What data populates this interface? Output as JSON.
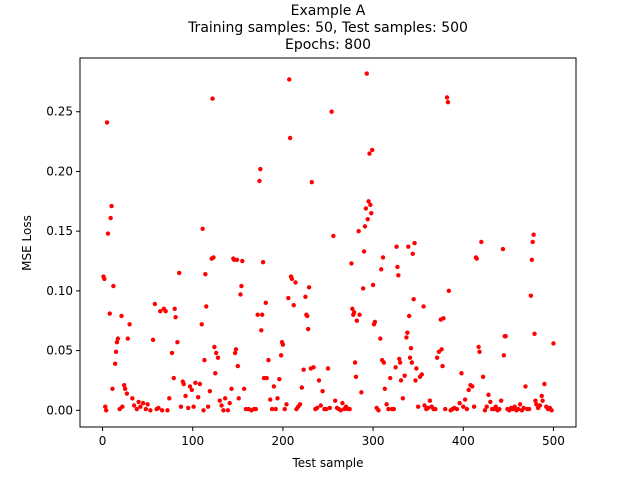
{
  "chart_data": {
    "type": "scatter",
    "title_lines": [
      "Example A",
      "Training samples: 50,   Test samples: 500",
      "Epochs: 800"
    ],
    "xlabel": "Test sample",
    "ylabel": "MSE Loss",
    "xlim": [
      -25,
      525
    ],
    "ylim": [
      -0.014,
      0.295
    ],
    "xticks": [
      0,
      100,
      200,
      300,
      400,
      500
    ],
    "xtick_labels": [
      "0",
      "100",
      "200",
      "300",
      "400",
      "500"
    ],
    "yticks": [
      0.0,
      0.05,
      0.1,
      0.15,
      0.2,
      0.25
    ],
    "ytick_labels": [
      "0.00",
      "0.05",
      "0.10",
      "0.15",
      "0.20",
      "0.25"
    ],
    "grid": false,
    "legend": "none",
    "marker_color": "#ff0000",
    "points": [
      [
        1,
        0.112
      ],
      [
        2,
        0.11
      ],
      [
        3,
        0.003
      ],
      [
        4,
        0.0
      ],
      [
        5,
        0.241
      ],
      [
        6,
        0.148
      ],
      [
        8,
        0.081
      ],
      [
        9,
        0.161
      ],
      [
        10,
        0.171
      ],
      [
        11,
        0.018
      ],
      [
        12,
        0.104
      ],
      [
        14,
        0.039
      ],
      [
        15,
        0.049
      ],
      [
        16,
        0.057
      ],
      [
        17,
        0.06
      ],
      [
        19,
        0.001
      ],
      [
        21,
        0.079
      ],
      [
        22,
        0.003
      ],
      [
        24,
        0.021
      ],
      [
        25,
        0.018
      ],
      [
        27,
        0.014
      ],
      [
        28,
        0.06
      ],
      [
        30,
        0.072
      ],
      [
        33,
        0.01
      ],
      [
        35,
        0.004
      ],
      [
        38,
        0.001
      ],
      [
        40,
        0.007
      ],
      [
        42,
        0.003
      ],
      [
        45,
        0.006
      ],
      [
        48,
        0.001
      ],
      [
        50,
        0.005
      ],
      [
        53,
        0.0
      ],
      [
        56,
        0.059
      ],
      [
        58,
        0.089
      ],
      [
        60,
        0.001
      ],
      [
        62,
        0.002
      ],
      [
        64,
        0.083
      ],
      [
        66,
        0.0
      ],
      [
        68,
        0.085
      ],
      [
        70,
        0.083
      ],
      [
        72,
        0.0
      ],
      [
        74,
        0.01
      ],
      [
        77,
        0.048
      ],
      [
        79,
        0.027
      ],
      [
        80,
        0.085
      ],
      [
        81,
        0.078
      ],
      [
        83,
        0.057
      ],
      [
        85,
        0.115
      ],
      [
        87,
        0.003
      ],
      [
        89,
        0.024
      ],
      [
        90,
        0.022
      ],
      [
        92,
        0.012
      ],
      [
        95,
        0.002
      ],
      [
        97,
        0.02
      ],
      [
        99,
        0.017
      ],
      [
        101,
        0.003
      ],
      [
        103,
        0.023
      ],
      [
        106,
        0.011
      ],
      [
        108,
        0.022
      ],
      [
        110,
        0.072
      ],
      [
        111,
        0.152
      ],
      [
        112,
        0.0
      ],
      [
        113,
        0.042
      ],
      [
        114,
        0.114
      ],
      [
        115,
        0.087
      ],
      [
        117,
        0.003
      ],
      [
        119,
        0.016
      ],
      [
        121,
        0.127
      ],
      [
        122,
        0.261
      ],
      [
        123,
        0.128
      ],
      [
        124,
        0.053
      ],
      [
        125,
        0.031
      ],
      [
        126,
        0.048
      ],
      [
        128,
        0.044
      ],
      [
        130,
        0.008
      ],
      [
        132,
        0.004
      ],
      [
        134,
        0.0
      ],
      [
        136,
        0.01
      ],
      [
        139,
        0.0
      ],
      [
        141,
        0.006
      ],
      [
        143,
        0.018
      ],
      [
        145,
        0.127
      ],
      [
        146,
        0.126
      ],
      [
        147,
        0.048
      ],
      [
        148,
        0.051
      ],
      [
        149,
        0.126
      ],
      [
        150,
        0.037
      ],
      [
        151,
        0.01
      ],
      [
        153,
        0.097
      ],
      [
        154,
        0.104
      ],
      [
        155,
        0.125
      ],
      [
        157,
        0.018
      ],
      [
        159,
        0.001
      ],
      [
        162,
        0.001
      ],
      [
        165,
        0.0
      ],
      [
        168,
        0.001
      ],
      [
        170,
        0.001
      ],
      [
        172,
        0.08
      ],
      [
        174,
        0.192
      ],
      [
        175,
        0.202
      ],
      [
        176,
        0.067
      ],
      [
        177,
        0.08
      ],
      [
        178,
        0.124
      ],
      [
        179,
        0.027
      ],
      [
        181,
        0.09
      ],
      [
        182,
        0.027
      ],
      [
        184,
        0.042
      ],
      [
        186,
        0.009
      ],
      [
        188,
        0.001
      ],
      [
        190,
        0.02
      ],
      [
        192,
        0.001
      ],
      [
        194,
        0.01
      ],
      [
        196,
        0.026
      ],
      [
        198,
        0.046
      ],
      [
        199,
        0.057
      ],
      [
        200,
        0.055
      ],
      [
        202,
        0.001
      ],
      [
        204,
        0.005
      ],
      [
        206,
        0.094
      ],
      [
        207,
        0.277
      ],
      [
        208,
        0.228
      ],
      [
        209,
        0.112
      ],
      [
        210,
        0.11
      ],
      [
        212,
        0.088
      ],
      [
        214,
        0.107
      ],
      [
        215,
        0.001
      ],
      [
        217,
        0.003
      ],
      [
        219,
        0.005
      ],
      [
        221,
        0.019
      ],
      [
        223,
        0.034
      ],
      [
        225,
        0.095
      ],
      [
        226,
        0.08
      ],
      [
        227,
        0.079
      ],
      [
        228,
        0.068
      ],
      [
        229,
        0.103
      ],
      [
        231,
        0.035
      ],
      [
        232,
        0.191
      ],
      [
        234,
        0.036
      ],
      [
        236,
        0.001
      ],
      [
        238,
        0.002
      ],
      [
        240,
        0.025
      ],
      [
        242,
        0.004
      ],
      [
        244,
        0.016
      ],
      [
        246,
        0.001
      ],
      [
        248,
        0.001
      ],
      [
        250,
        0.035
      ],
      [
        252,
        0.002
      ],
      [
        254,
        0.25
      ],
      [
        256,
        0.146
      ],
      [
        258,
        0.008
      ],
      [
        260,
        0.002
      ],
      [
        262,
        0.001
      ],
      [
        264,
        0.0
      ],
      [
        266,
        0.006
      ],
      [
        268,
        0.001
      ],
      [
        270,
        0.003
      ],
      [
        272,
        0.001
      ],
      [
        274,
        0.001
      ],
      [
        276,
        0.123
      ],
      [
        277,
        0.085
      ],
      [
        278,
        0.08
      ],
      [
        279,
        0.082
      ],
      [
        280,
        0.04
      ],
      [
        281,
        0.028
      ],
      [
        282,
        0.075
      ],
      [
        284,
        0.15
      ],
      [
        285,
        0.08
      ],
      [
        287,
        0.015
      ],
      [
        289,
        0.102
      ],
      [
        290,
        0.133
      ],
      [
        291,
        0.154
      ],
      [
        292,
        0.169
      ],
      [
        293,
        0.282
      ],
      [
        294,
        0.16
      ],
      [
        295,
        0.175
      ],
      [
        296,
        0.215
      ],
      [
        297,
        0.172
      ],
      [
        298,
        0.165
      ],
      [
        299,
        0.218
      ],
      [
        300,
        0.105
      ],
      [
        301,
        0.072
      ],
      [
        302,
        0.074
      ],
      [
        304,
        0.002
      ],
      [
        306,
        0.0
      ],
      [
        308,
        0.06
      ],
      [
        309,
        0.118
      ],
      [
        310,
        0.042
      ],
      [
        311,
        0.128
      ],
      [
        312,
        0.04
      ],
      [
        313,
        0.018
      ],
      [
        315,
        0.005
      ],
      [
        317,
        0.001
      ],
      [
        319,
        0.027
      ],
      [
        321,
        0.001
      ],
      [
        323,
        0.001
      ],
      [
        325,
        0.036
      ],
      [
        326,
        0.137
      ],
      [
        327,
        0.12
      ],
      [
        328,
        0.113
      ],
      [
        329,
        0.043
      ],
      [
        330,
        0.04
      ],
      [
        331,
        0.025
      ],
      [
        333,
        0.01
      ],
      [
        335,
        0.029
      ],
      [
        337,
        0.061
      ],
      [
        338,
        0.065
      ],
      [
        339,
        0.137
      ],
      [
        340,
        0.079
      ],
      [
        341,
        0.044
      ],
      [
        342,
        0.052
      ],
      [
        343,
        0.04
      ],
      [
        344,
        0.131
      ],
      [
        345,
        0.093
      ],
      [
        346,
        0.14
      ],
      [
        347,
        0.025
      ],
      [
        348,
        0.035
      ],
      [
        350,
        0.003
      ],
      [
        352,
        0.028
      ],
      [
        354,
        0.03
      ],
      [
        356,
        0.087
      ],
      [
        357,
        0.004
      ],
      [
        359,
        0.001
      ],
      [
        361,
        0.002
      ],
      [
        363,
        0.008
      ],
      [
        365,
        0.003
      ],
      [
        367,
        0.001
      ],
      [
        369,
        0.001
      ],
      [
        371,
        0.044
      ],
      [
        373,
        0.049
      ],
      [
        375,
        0.076
      ],
      [
        376,
        0.051
      ],
      [
        377,
        0.037
      ],
      [
        378,
        0.077
      ],
      [
        380,
        0.001
      ],
      [
        382,
        0.262
      ],
      [
        383,
        0.258
      ],
      [
        384,
        0.1
      ],
      [
        386,
        0.0
      ],
      [
        388,
        0.001
      ],
      [
        390,
        0.002
      ],
      [
        393,
        0.001
      ],
      [
        396,
        0.006
      ],
      [
        398,
        0.031
      ],
      [
        400,
        0.003
      ],
      [
        402,
        0.009
      ],
      [
        404,
        0.001
      ],
      [
        406,
        0.017
      ],
      [
        408,
        0.021
      ],
      [
        410,
        0.02
      ],
      [
        412,
        0.003
      ],
      [
        414,
        0.128
      ],
      [
        415,
        0.127
      ],
      [
        417,
        0.053
      ],
      [
        418,
        0.049
      ],
      [
        420,
        0.141
      ],
      [
        422,
        0.028
      ],
      [
        424,
        0.0
      ],
      [
        426,
        0.003
      ],
      [
        428,
        0.013
      ],
      [
        430,
        0.007
      ],
      [
        432,
        0.001
      ],
      [
        434,
        0.001
      ],
      [
        436,
        0.003
      ],
      [
        438,
        0.0
      ],
      [
        440,
        0.001
      ],
      [
        442,
        0.008
      ],
      [
        444,
        0.135
      ],
      [
        445,
        0.046
      ],
      [
        446,
        0.062
      ],
      [
        447,
        0.062
      ],
      [
        449,
        0.001
      ],
      [
        451,
        0.0
      ],
      [
        453,
        0.002
      ],
      [
        455,
        0.001
      ],
      [
        457,
        0.003
      ],
      [
        459,
        0.0
      ],
      [
        461,
        0.001
      ],
      [
        463,
        0.005
      ],
      [
        465,
        0.0
      ],
      [
        467,
        0.002
      ],
      [
        469,
        0.02
      ],
      [
        471,
        0.001
      ],
      [
        473,
        0.001
      ],
      [
        475,
        0.096
      ],
      [
        476,
        0.126
      ],
      [
        477,
        0.141
      ],
      [
        478,
        0.147
      ],
      [
        479,
        0.064
      ],
      [
        480,
        0.008
      ],
      [
        481,
        0.005
      ],
      [
        483,
        0.002
      ],
      [
        485,
        0.004
      ],
      [
        487,
        0.012
      ],
      [
        488,
        0.008
      ],
      [
        490,
        0.022
      ],
      [
        492,
        0.003
      ],
      [
        494,
        0.001
      ],
      [
        496,
        0.002
      ],
      [
        498,
        0.0
      ],
      [
        500,
        0.056
      ]
    ]
  }
}
